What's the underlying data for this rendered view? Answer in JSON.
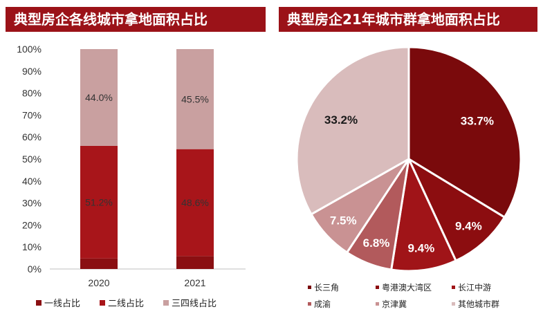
{
  "titles": {
    "left": "典型房企各线城市拿地面积占比",
    "right": "典型房企21年城市群拿地面积占比"
  },
  "chart_data": [
    {
      "type": "bar",
      "stacked": true,
      "categories": [
        "2020",
        "2021"
      ],
      "ylim": [
        0,
        100
      ],
      "y_ticks": [
        "0%",
        "10%",
        "20%",
        "30%",
        "40%",
        "50%",
        "60%",
        "70%",
        "80%",
        "90%",
        "100%"
      ],
      "legend_position": "bottom",
      "series": [
        {
          "name": "一线占比",
          "values": [
            4.8,
            5.9
          ],
          "color": "#8a0f12",
          "labels": [
            "",
            ""
          ]
        },
        {
          "name": "二线占比",
          "values": [
            51.2,
            48.6
          ],
          "color": "#a8151a",
          "labels": [
            "51.2%",
            "48.6%"
          ]
        },
        {
          "name": "三四线占比",
          "values": [
            44.0,
            45.5
          ],
          "color": "#c9a0a0",
          "labels": [
            "44.0%",
            "45.5%"
          ]
        }
      ]
    },
    {
      "type": "pie",
      "legend_position": "bottom",
      "slices": [
        {
          "name": "长三角",
          "value": 33.7,
          "label": "33.7%",
          "color": "#7a0a0c",
          "label_color": "#ffffff"
        },
        {
          "name": "粤港澳大湾区",
          "value": 9.4,
          "label": "9.4%",
          "color": "#8c0d10",
          "label_color": "#ffffff"
        },
        {
          "name": "长江中游",
          "value": 9.4,
          "label": "9.4%",
          "color": "#a01418",
          "label_color": "#ffffff"
        },
        {
          "name": "成渝",
          "value": 6.8,
          "label": "6.8%",
          "color": "#b25a5c",
          "label_color": "#ffffff"
        },
        {
          "name": "京津冀",
          "value": 7.5,
          "label": "7.5%",
          "color": "#c99293",
          "label_color": "#ffffff"
        },
        {
          "name": "其他城市群",
          "value": 33.2,
          "label": "33.2%",
          "color": "#d9bcbc",
          "label_color": "#1a1a1a"
        }
      ]
    }
  ]
}
